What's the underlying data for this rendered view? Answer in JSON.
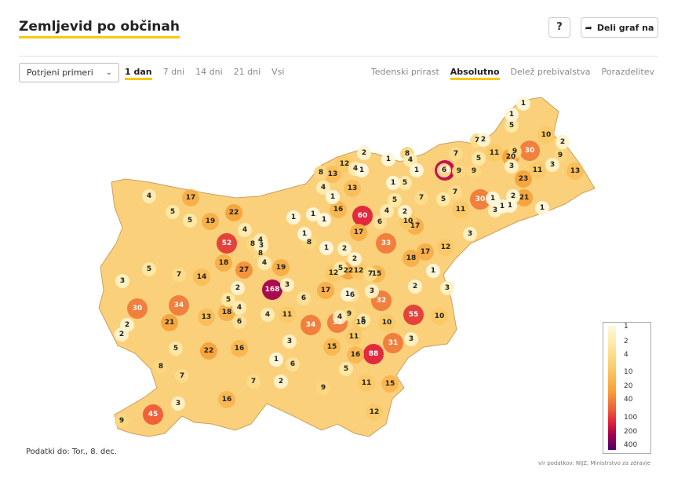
{
  "header": {
    "title": "Zemljevid po občinah",
    "help_label": "?",
    "share_label": "Deli graf na",
    "share_icon": "share-arrow-icon"
  },
  "filters": {
    "select_value": "Potrjeni primeri",
    "time_tabs": [
      {
        "label": "1 dan",
        "active": true
      },
      {
        "label": "7 dni",
        "active": false
      },
      {
        "label": "14 dni",
        "active": false
      },
      {
        "label": "21 dni",
        "active": false
      },
      {
        "label": "Vsi",
        "active": false
      }
    ],
    "mode_tabs": [
      {
        "label": "Tedenski prirast",
        "active": false
      },
      {
        "label": "Absolutno",
        "active": true
      },
      {
        "label": "Delež prebivalstva",
        "active": false
      },
      {
        "label": "Porazdelitev",
        "active": false
      }
    ]
  },
  "legend": {
    "labels": [
      "1",
      "2",
      "4",
      "10",
      "20",
      "40",
      "100",
      "200",
      "400"
    ],
    "colors": [
      "#fff7dc",
      "#fde9a6",
      "#fbd77f",
      "#fbc866",
      "#f7a23a",
      "#ef5a36",
      "#e0203a",
      "#a5004d",
      "#4b006e"
    ]
  },
  "map": {
    "municipality_values": [
      {
        "value": 168,
        "color": "#a5004d"
      },
      {
        "value": 93,
        "color": "#c00a4c"
      },
      {
        "value": 88,
        "color": "#e0203a"
      },
      {
        "value": 60,
        "color": "#e0203a"
      },
      {
        "value": 55,
        "color": "#e33a38"
      },
      {
        "value": 52,
        "color": "#e33a38"
      },
      {
        "value": 45,
        "color": "#ef5a36"
      },
      {
        "value": 34,
        "color": "#f07a3a"
      },
      {
        "value": 34,
        "color": "#f07a3a"
      },
      {
        "value": 33,
        "color": "#f07a3a"
      },
      {
        "value": 32,
        "color": "#f07a3a"
      },
      {
        "value": 31,
        "color": "#f07a3a"
      },
      {
        "value": 31,
        "color": "#f07a3a"
      },
      {
        "value": 30,
        "color": "#f07a3a"
      },
      {
        "value": 30,
        "color": "#f07a3a"
      },
      {
        "value": 30,
        "color": "#f07a3a"
      },
      {
        "value": 27,
        "color": "#f58f3a"
      },
      {
        "value": 23,
        "color": "#f7a23a"
      },
      {
        "value": 22,
        "color": "#f7a23a"
      },
      {
        "value": 22,
        "color": "#f7a23a"
      },
      {
        "value": 22,
        "color": "#f7a23a"
      },
      {
        "value": 21,
        "color": "#f7a23a"
      },
      {
        "value": 21,
        "color": "#f7a23a"
      },
      {
        "value": 20,
        "color": "#f7a23a"
      },
      {
        "value": 19,
        "color": "#f8ae48"
      },
      {
        "value": 19,
        "color": "#f8ae48"
      },
      {
        "value": 18,
        "color": "#f8ae48"
      },
      {
        "value": 18,
        "color": "#f8ae48"
      },
      {
        "value": 18,
        "color": "#f8ae48"
      },
      {
        "value": 17,
        "color": "#f8ae48"
      },
      {
        "value": 17,
        "color": "#f8ae48"
      },
      {
        "value": 17,
        "color": "#f8ae48"
      },
      {
        "value": 17,
        "color": "#f8ae48"
      },
      {
        "value": 17,
        "color": "#f8ae48"
      },
      {
        "value": 16,
        "color": "#f9b650"
      },
      {
        "value": 16,
        "color": "#f9b650"
      },
      {
        "value": 16,
        "color": "#f9b650"
      },
      {
        "value": 16,
        "color": "#f9b650"
      },
      {
        "value": 15,
        "color": "#f9b650"
      },
      {
        "value": 15,
        "color": "#f9b650"
      },
      {
        "value": 15,
        "color": "#f9b650"
      },
      {
        "value": 14,
        "color": "#fabd58"
      },
      {
        "value": 13,
        "color": "#fabd58"
      },
      {
        "value": 13,
        "color": "#fabd58"
      },
      {
        "value": 13,
        "color": "#fabd58"
      },
      {
        "value": 13,
        "color": "#fabd58"
      },
      {
        "value": 12,
        "color": "#fbc866"
      },
      {
        "value": 12,
        "color": "#fbc866"
      },
      {
        "value": 12,
        "color": "#fbc866"
      },
      {
        "value": 12,
        "color": "#fbc866"
      },
      {
        "value": 12,
        "color": "#fbc866"
      },
      {
        "value": 11,
        "color": "#fbc866"
      },
      {
        "value": 11,
        "color": "#fbc866"
      },
      {
        "value": 11,
        "color": "#fbc866"
      },
      {
        "value": 11,
        "color": "#fbc866"
      },
      {
        "value": 11,
        "color": "#fbc866"
      },
      {
        "value": 11,
        "color": "#fbc866"
      },
      {
        "value": 10,
        "color": "#fbc866"
      },
      {
        "value": 10,
        "color": "#fbc866"
      },
      {
        "value": 10,
        "color": "#fbc866"
      },
      {
        "value": 10,
        "color": "#fbc866"
      },
      {
        "value": 10,
        "color": "#fbc866"
      },
      {
        "value": 9,
        "color": "#fbd77f"
      },
      {
        "value": 9,
        "color": "#fbd77f"
      },
      {
        "value": 9,
        "color": "#fbd77f"
      },
      {
        "value": 9,
        "color": "#fbd77f"
      },
      {
        "value": 9,
        "color": "#fbd77f"
      },
      {
        "value": 9,
        "color": "#fbd77f"
      },
      {
        "value": 9,
        "color": "#fbd77f"
      },
      {
        "value": 8,
        "color": "#fbd77f"
      },
      {
        "value": 8,
        "color": "#fbd77f"
      },
      {
        "value": 8,
        "color": "#fbd77f"
      },
      {
        "value": 8,
        "color": "#fbd77f"
      },
      {
        "value": 8,
        "color": "#fbd77f"
      },
      {
        "value": 8,
        "color": "#fbd77f"
      },
      {
        "value": 7,
        "color": "#fcdc8c"
      },
      {
        "value": 7,
        "color": "#fcdc8c"
      },
      {
        "value": 7,
        "color": "#fcdc8c"
      },
      {
        "value": 7,
        "color": "#fcdc8c"
      },
      {
        "value": 7,
        "color": "#fcdc8c"
      },
      {
        "value": 7,
        "color": "#fcdc8c"
      },
      {
        "value": 7,
        "color": "#fcdc8c"
      },
      {
        "value": 7,
        "color": "#fcdc8c"
      },
      {
        "value": 6,
        "color": "#fde09a"
      },
      {
        "value": 6,
        "color": "#fde09a"
      },
      {
        "value": 6,
        "color": "#fde09a"
      },
      {
        "value": 6,
        "color": "#fde09a"
      },
      {
        "value": 6,
        "color": "#fde09a"
      },
      {
        "value": 6,
        "color": "#fde09a"
      },
      {
        "value": 5,
        "color": "#fde9a6"
      },
      {
        "value": 5,
        "color": "#fde9a6"
      },
      {
        "value": 5,
        "color": "#fde9a6"
      },
      {
        "value": 5,
        "color": "#fde9a6"
      },
      {
        "value": 5,
        "color": "#fde9a6"
      },
      {
        "value": 5,
        "color": "#fde9a6"
      },
      {
        "value": 5,
        "color": "#fde9a6"
      },
      {
        "value": 5,
        "color": "#fde9a6"
      },
      {
        "value": 5,
        "color": "#fde9a6"
      },
      {
        "value": 5,
        "color": "#fde9a6"
      },
      {
        "value": 5,
        "color": "#fde9a6"
      },
      {
        "value": 5,
        "color": "#fde9a6"
      },
      {
        "value": 5,
        "color": "#fde9a6"
      },
      {
        "value": 4,
        "color": "#feecb4"
      },
      {
        "value": 4,
        "color": "#feecb4"
      },
      {
        "value": 4,
        "color": "#feecb4"
      },
      {
        "value": 4,
        "color": "#feecb4"
      },
      {
        "value": 4,
        "color": "#feecb4"
      },
      {
        "value": 4,
        "color": "#feecb4"
      },
      {
        "value": 4,
        "color": "#feecb4"
      },
      {
        "value": 4,
        "color": "#feecb4"
      },
      {
        "value": 4,
        "color": "#feecb4"
      },
      {
        "value": 4,
        "color": "#feecb4"
      },
      {
        "value": 4,
        "color": "#feecb4"
      },
      {
        "value": 3,
        "color": "#fef1c4"
      },
      {
        "value": 3,
        "color": "#fef1c4"
      },
      {
        "value": 3,
        "color": "#fef1c4"
      },
      {
        "value": 3,
        "color": "#fef1c4"
      },
      {
        "value": 3,
        "color": "#fef1c4"
      },
      {
        "value": 3,
        "color": "#fef1c4"
      },
      {
        "value": 3,
        "color": "#fef1c4"
      },
      {
        "value": 3,
        "color": "#fef1c4"
      },
      {
        "value": 3,
        "color": "#fef1c4"
      },
      {
        "value": 3,
        "color": "#fef1c4"
      },
      {
        "value": 3,
        "color": "#fef1c4"
      },
      {
        "value": 3,
        "color": "#fef1c4"
      },
      {
        "value": 2,
        "color": "#fff3cf"
      },
      {
        "value": 2,
        "color": "#fff3cf"
      },
      {
        "value": 2,
        "color": "#fff3cf"
      },
      {
        "value": 2,
        "color": "#fff3cf"
      },
      {
        "value": 2,
        "color": "#fff3cf"
      },
      {
        "value": 2,
        "color": "#fff3cf"
      },
      {
        "value": 2,
        "color": "#fff3cf"
      },
      {
        "value": 2,
        "color": "#fff3cf"
      },
      {
        "value": 2,
        "color": "#fff3cf"
      },
      {
        "value": 2,
        "color": "#fff3cf"
      },
      {
        "value": 2,
        "color": "#fff3cf"
      },
      {
        "value": 2,
        "color": "#fff3cf"
      },
      {
        "value": 1,
        "color": "#fff7dc"
      },
      {
        "value": 1,
        "color": "#fff7dc"
      },
      {
        "value": 1,
        "color": "#fff7dc"
      },
      {
        "value": 1,
        "color": "#fff7dc"
      },
      {
        "value": 1,
        "color": "#fff7dc"
      },
      {
        "value": 1,
        "color": "#fff7dc"
      },
      {
        "value": 1,
        "color": "#fff7dc"
      },
      {
        "value": 1,
        "color": "#fff7dc"
      },
      {
        "value": 1,
        "color": "#fff7dc"
      },
      {
        "value": 1,
        "color": "#fff7dc"
      },
      {
        "value": 1,
        "color": "#fff7dc"
      },
      {
        "value": 1,
        "color": "#fff7dc"
      },
      {
        "value": 1,
        "color": "#fff7dc"
      },
      {
        "value": 1,
        "color": "#fff7dc"
      },
      {
        "value": 1,
        "color": "#fff7dc"
      },
      {
        "value": 1,
        "color": "#fff7dc"
      },
      {
        "value": 1,
        "color": "#fff7dc"
      },
      {
        "value": 1,
        "color": "#fff7dc"
      },
      {
        "value": 1,
        "color": "#fff7dc"
      }
    ]
  },
  "footer": {
    "updated": "Podatki do: Tor., 8. dec.",
    "source": "vir podatkov: NIJZ, Ministrstvo za zdravje"
  }
}
